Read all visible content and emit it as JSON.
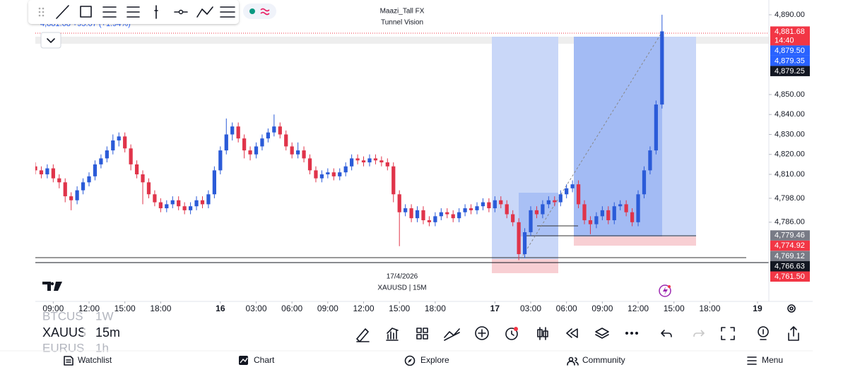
{
  "header": {
    "title": "Maazi_Tall FX",
    "subtitle": "Tunnel Vision",
    "price_info": "4,881.68 +95.07 (+1.94%)"
  },
  "chart_data": {
    "type": "candlestick",
    "color_up": "#2b5bd8",
    "color_down": "#e0344a",
    "ylim": [
      4746.3,
      4897.4
    ],
    "yticks": [
      {
        "value": 4890,
        "label": "4,890.00"
      },
      {
        "value": 4850,
        "label": "4,850.00"
      },
      {
        "value": 4840,
        "label": "4,840.00"
      },
      {
        "value": 4830,
        "label": "4,830.00"
      },
      {
        "value": 4820,
        "label": "4,820.00"
      },
      {
        "value": 4810,
        "label": "4,810.00"
      },
      {
        "value": 4798,
        "label": "4,798.00"
      },
      {
        "value": 4786,
        "label": "4,786.00"
      }
    ],
    "xlim": [
      0,
      122.9
    ],
    "xticks": [
      {
        "value": 3,
        "label": "09:00"
      },
      {
        "value": 9,
        "label": "12:00"
      },
      {
        "value": 15,
        "label": "15:00"
      },
      {
        "value": 21,
        "label": "18:00"
      },
      {
        "value": 31,
        "label": "16"
      },
      {
        "value": 37,
        "label": "03:00"
      },
      {
        "value": 43,
        "label": "06:00"
      },
      {
        "value": 49,
        "label": "09:00"
      },
      {
        "value": 55,
        "label": "12:00"
      },
      {
        "value": 61,
        "label": "15:00"
      },
      {
        "value": 67,
        "label": "18:00"
      },
      {
        "value": 77,
        "label": "17"
      },
      {
        "value": 83,
        "label": "03:00"
      },
      {
        "value": 89,
        "label": "06:00"
      },
      {
        "value": 95,
        "label": "09:00"
      },
      {
        "value": 101,
        "label": "12:00"
      },
      {
        "value": 107,
        "label": "15:00"
      },
      {
        "value": 113,
        "label": "18:00"
      },
      {
        "value": 121,
        "label": "19"
      }
    ],
    "candles": [
      [
        4814,
        4816,
        4810,
        4812
      ],
      [
        4812,
        4814,
        4808,
        4810
      ],
      [
        4810,
        4815,
        4808,
        4813
      ],
      [
        4813,
        4815,
        4806,
        4808
      ],
      [
        4808,
        4810,
        4803,
        4806
      ],
      [
        4806,
        4808,
        4796,
        4799
      ],
      [
        4799,
        4801,
        4792,
        4797
      ],
      [
        4797,
        4804,
        4795,
        4802
      ],
      [
        4802,
        4808,
        4800,
        4806
      ],
      [
        4806,
        4811,
        4804,
        4809
      ],
      [
        4809,
        4817,
        4807,
        4815
      ],
      [
        4815,
        4820,
        4813,
        4818
      ],
      [
        4818,
        4824,
        4816,
        4822
      ],
      [
        4822,
        4830,
        4820,
        4827
      ],
      [
        4827,
        4831,
        4824,
        4829
      ],
      [
        4829,
        4831,
        4821,
        4823
      ],
      [
        4823,
        4825,
        4812,
        4815
      ],
      [
        4815,
        4817,
        4808,
        4810
      ],
      [
        4810,
        4812,
        4795,
        4806
      ],
      [
        4806,
        4808,
        4798,
        4800
      ],
      [
        4800,
        4802,
        4794,
        4796
      ],
      [
        4796,
        4798,
        4791,
        4793
      ],
      [
        4793,
        4797,
        4791,
        4795
      ],
      [
        4795,
        4799,
        4793,
        4797
      ],
      [
        4797,
        4799,
        4792,
        4794
      ],
      [
        4794,
        4796,
        4790,
        4792
      ],
      [
        4792,
        4796,
        4790,
        4794
      ],
      [
        4794,
        4799,
        4792,
        4797
      ],
      [
        4797,
        4799,
        4793,
        4795
      ],
      [
        4795,
        4802,
        4793,
        4800
      ],
      [
        4800,
        4814,
        4798,
        4812
      ],
      [
        4812,
        4824,
        4810,
        4822
      ],
      [
        4822,
        4838,
        4820,
        4830
      ],
      [
        4830,
        4836,
        4827,
        4834
      ],
      [
        4834,
        4836,
        4826,
        4828
      ],
      [
        4828,
        4830,
        4818,
        4822
      ],
      [
        4822,
        4824,
        4817,
        4820
      ],
      [
        4820,
        4826,
        4818,
        4824
      ],
      [
        4824,
        4830,
        4822,
        4828
      ],
      [
        4828,
        4833,
        4826,
        4831
      ],
      [
        4831,
        4840,
        4829,
        4834
      ],
      [
        4834,
        4836,
        4828,
        4830
      ],
      [
        4830,
        4832,
        4822,
        4824
      ],
      [
        4824,
        4826,
        4818,
        4820
      ],
      [
        4820,
        4826,
        4818,
        4822
      ],
      [
        4822,
        4824,
        4816,
        4818
      ],
      [
        4818,
        4820,
        4810,
        4812
      ],
      [
        4812,
        4814,
        4806,
        4808
      ],
      [
        4808,
        4812,
        4806,
        4810
      ],
      [
        4810,
        4813,
        4808,
        4811
      ],
      [
        4811,
        4813,
        4807,
        4809
      ],
      [
        4809,
        4813,
        4807,
        4811
      ],
      [
        4811,
        4816,
        4809,
        4814
      ],
      [
        4814,
        4820,
        4812,
        4818
      ],
      [
        4818,
        4820,
        4815,
        4817
      ],
      [
        4817,
        4819,
        4814,
        4816
      ],
      [
        4816,
        4820,
        4814,
        4818
      ],
      [
        4818,
        4820,
        4815,
        4817
      ],
      [
        4817,
        4819,
        4814,
        4816
      ],
      [
        4816,
        4818,
        4812,
        4814
      ],
      [
        4814,
        4816,
        4796,
        4800
      ],
      [
        4800,
        4802,
        4774,
        4791
      ],
      [
        4791,
        4795,
        4789,
        4793
      ],
      [
        4793,
        4795,
        4786,
        4788
      ],
      [
        4788,
        4794,
        4786,
        4792
      ],
      [
        4792,
        4794,
        4785,
        4787
      ],
      [
        4787,
        4789,
        4784,
        4786
      ],
      [
        4786,
        4791,
        4784,
        4789
      ],
      [
        4789,
        4793,
        4787,
        4791
      ],
      [
        4791,
        4793,
        4788,
        4790
      ],
      [
        4790,
        4792,
        4786,
        4788
      ],
      [
        4788,
        4793,
        4786,
        4791
      ],
      [
        4791,
        4795,
        4789,
        4793
      ],
      [
        4793,
        4795,
        4790,
        4792
      ],
      [
        4792,
        4796,
        4790,
        4794
      ],
      [
        4794,
        4798,
        4792,
        4796
      ],
      [
        4796,
        4798,
        4791,
        4793
      ],
      [
        4793,
        4799,
        4791,
        4797
      ],
      [
        4797,
        4799,
        4793,
        4795
      ],
      [
        4795,
        4797,
        4788,
        4790
      ],
      [
        4790,
        4792,
        4784,
        4786
      ],
      [
        4786,
        4788,
        4767,
        4770
      ],
      [
        4770,
        4783,
        4768,
        4781
      ],
      [
        4781,
        4794,
        4779,
        4792
      ],
      [
        4792,
        4794,
        4788,
        4790
      ],
      [
        4790,
        4797,
        4788,
        4795
      ],
      [
        4795,
        4799,
        4793,
        4797
      ],
      [
        4797,
        4799,
        4794,
        4796
      ],
      [
        4796,
        4802,
        4794,
        4800
      ],
      [
        4800,
        4805,
        4798,
        4803
      ],
      [
        4803,
        4807,
        4801,
        4805
      ],
      [
        4805,
        4807,
        4793,
        4795
      ],
      [
        4795,
        4797,
        4785,
        4787
      ],
      [
        4787,
        4789,
        4780,
        4785
      ],
      [
        4785,
        4791,
        4783,
        4789
      ],
      [
        4789,
        4794,
        4787,
        4792
      ],
      [
        4792,
        4794,
        4785,
        4787
      ],
      [
        4787,
        4796,
        4785,
        4794
      ],
      [
        4794,
        4797,
        4792,
        4795
      ],
      [
        4795,
        4797,
        4789,
        4791
      ],
      [
        4791,
        4793,
        4784,
        4786
      ],
      [
        4786,
        4802,
        4784,
        4800
      ],
      [
        4800,
        4814,
        4798,
        4812
      ],
      [
        4812,
        4824,
        4810,
        4822
      ],
      [
        4822,
        4847,
        4820,
        4845
      ],
      [
        4845,
        4890,
        4843,
        4881.68
      ]
    ],
    "price_labels": [
      {
        "value": 4881.68,
        "label": "4,881.68",
        "color": "#f23645",
        "countdown": "14:40"
      },
      {
        "value": 4879.5,
        "label": "4,879.50",
        "color": "#2962ff"
      },
      {
        "value": 4879.35,
        "label": "4,879.35",
        "color": "#2962ff"
      },
      {
        "value": 4879.25,
        "label": "4,879.25",
        "color": "#131722"
      },
      {
        "value": 4779.46,
        "label": "4,779.46",
        "color": "#787b86"
      },
      {
        "value": 4774.92,
        "label": "4,774.92",
        "color": "#f23645"
      },
      {
        "value": 4769.12,
        "label": "4,769.12",
        "color": "#787b86"
      },
      {
        "value": 4766.63,
        "label": "4,766.63",
        "color": "#131722"
      },
      {
        "value": 4761.5,
        "label": "4,761.50",
        "color": "#f23645"
      }
    ],
    "date_label": "17/4/2026",
    "symbol_label": "XAUUSD | 15M"
  },
  "symbols": [
    {
      "name": "BTCUS",
      "interval": "1W"
    },
    {
      "name": "XAUUS",
      "interval": "15m"
    },
    {
      "name": "EURUS",
      "interval": "1h"
    }
  ],
  "nav": [
    "Watchlist",
    "Chart",
    "Explore",
    "Community",
    "Menu"
  ]
}
